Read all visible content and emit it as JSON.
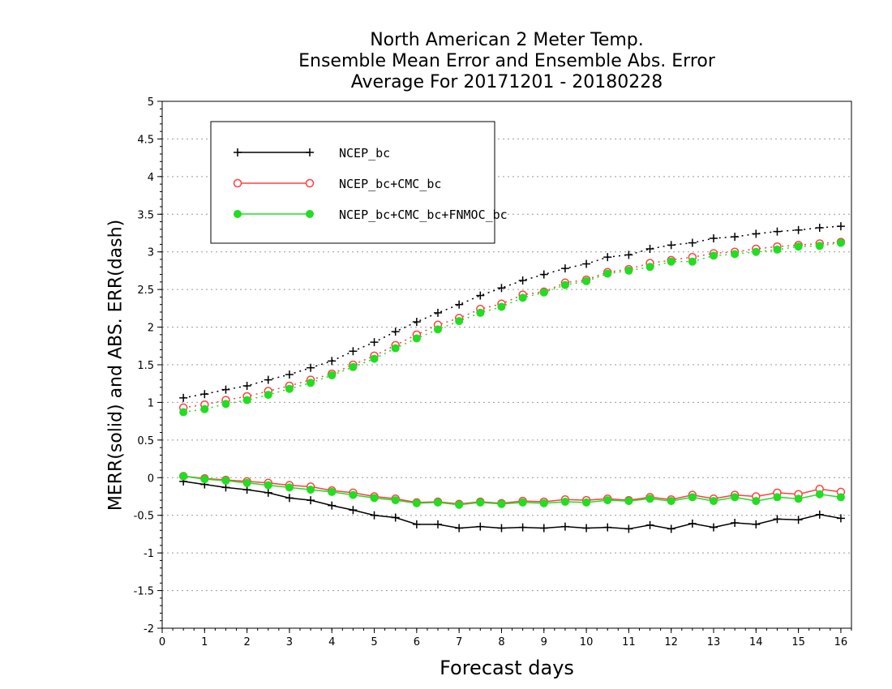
{
  "chart_data": {
    "type": "line",
    "title_lines": [
      "North American 2 Meter Temp.",
      "Ensemble Mean Error and Ensemble Abs. Error",
      "Average For 20171201 - 20180228"
    ],
    "xlabel": "Forecast days",
    "ylabel": "MERR(solid) and ABS. ERR(dash)",
    "xlim": [
      0,
      16.25
    ],
    "ylim": [
      -2,
      5
    ],
    "xticks": [
      0,
      1,
      2,
      3,
      4,
      5,
      6,
      7,
      8,
      9,
      10,
      11,
      12,
      13,
      14,
      15,
      16
    ],
    "yticks": [
      -2,
      -1.5,
      -1,
      -0.5,
      0,
      0.5,
      1,
      1.5,
      2,
      2.5,
      3,
      3.5,
      4,
      4.5,
      5
    ],
    "grid": "horizontal dotted",
    "legend_position": "top-left",
    "x": [
      0.5,
      1,
      1.5,
      2,
      2.5,
      3,
      3.5,
      4,
      4.5,
      5,
      5.5,
      6,
      6.5,
      7,
      7.5,
      8,
      8.5,
      9,
      9.5,
      10,
      10.5,
      11,
      11.5,
      12,
      12.5,
      13,
      13.5,
      14,
      14.5,
      15,
      15.5,
      16
    ],
    "series": [
      {
        "name": "NCEP_bc",
        "color": "#000000",
        "marker": "plus",
        "merr": [
          -0.05,
          -0.09,
          -0.13,
          -0.16,
          -0.2,
          -0.27,
          -0.3,
          -0.37,
          -0.43,
          -0.5,
          -0.53,
          -0.62,
          -0.62,
          -0.67,
          -0.65,
          -0.67,
          -0.66,
          -0.67,
          -0.65,
          -0.67,
          -0.66,
          -0.68,
          -0.63,
          -0.68,
          -0.61,
          -0.66,
          -0.6,
          -0.62,
          -0.55,
          -0.56,
          -0.49,
          -0.54
        ],
        "abs_err": [
          1.06,
          1.11,
          1.17,
          1.22,
          1.3,
          1.37,
          1.46,
          1.55,
          1.68,
          1.8,
          1.94,
          2.07,
          2.19,
          2.3,
          2.42,
          2.52,
          2.62,
          2.7,
          2.78,
          2.84,
          2.93,
          2.96,
          3.04,
          3.09,
          3.12,
          3.18,
          3.2,
          3.24,
          3.27,
          3.29,
          3.32,
          3.34
        ]
      },
      {
        "name": "NCEP_bc+CMC_bc",
        "color": "#ff4040",
        "marker": "open-circle",
        "merr": [
          0.02,
          -0.01,
          -0.03,
          -0.05,
          -0.07,
          -0.1,
          -0.12,
          -0.17,
          -0.2,
          -0.25,
          -0.28,
          -0.33,
          -0.32,
          -0.35,
          -0.32,
          -0.34,
          -0.31,
          -0.32,
          -0.29,
          -0.3,
          -0.28,
          -0.3,
          -0.26,
          -0.29,
          -0.23,
          -0.28,
          -0.23,
          -0.25,
          -0.2,
          -0.22,
          -0.15,
          -0.19
        ],
        "abs_err": [
          0.93,
          0.97,
          1.03,
          1.08,
          1.15,
          1.22,
          1.3,
          1.38,
          1.5,
          1.62,
          1.76,
          1.9,
          2.03,
          2.12,
          2.24,
          2.31,
          2.43,
          2.47,
          2.59,
          2.63,
          2.73,
          2.77,
          2.85,
          2.89,
          2.93,
          2.98,
          3.0,
          3.04,
          3.07,
          3.09,
          3.11,
          3.13
        ]
      },
      {
        "name": "NCEP_bc+CMC_bc+FNMOC_bc",
        "color": "#22dd22",
        "marker": "filled-circle",
        "merr": [
          0.02,
          -0.02,
          -0.04,
          -0.07,
          -0.1,
          -0.13,
          -0.16,
          -0.19,
          -0.23,
          -0.27,
          -0.3,
          -0.34,
          -0.33,
          -0.36,
          -0.33,
          -0.35,
          -0.33,
          -0.34,
          -0.32,
          -0.33,
          -0.3,
          -0.31,
          -0.28,
          -0.31,
          -0.26,
          -0.31,
          -0.26,
          -0.31,
          -0.26,
          -0.28,
          -0.22,
          -0.26
        ],
        "abs_err": [
          0.87,
          0.91,
          0.98,
          1.03,
          1.1,
          1.18,
          1.26,
          1.36,
          1.47,
          1.58,
          1.72,
          1.85,
          1.97,
          2.08,
          2.19,
          2.27,
          2.39,
          2.46,
          2.56,
          2.61,
          2.71,
          2.75,
          2.8,
          2.87,
          2.87,
          2.95,
          2.97,
          3.0,
          3.03,
          3.07,
          3.08,
          3.12
        ]
      }
    ]
  }
}
